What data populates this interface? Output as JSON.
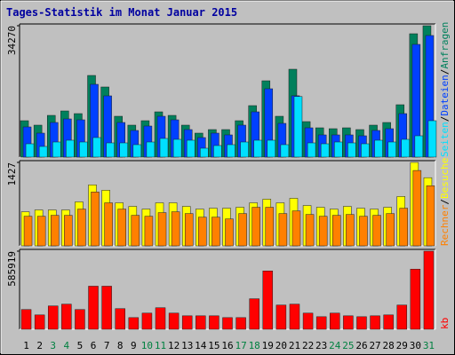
{
  "chart_data": [
    {
      "type": "bar",
      "title": "Tages-Statistik im Monat Januar 2015",
      "ylim": [
        0,
        34270
      ],
      "yticks": [
        34270
      ],
      "legend_separator": "/",
      "series": [
        {
          "name": "Anfragen",
          "color": "#00805c",
          "values": [
            9494,
            8336,
            10883,
            12041,
            11346,
            21303,
            18293,
            10651,
            8336,
            9494,
            11809,
            10883,
            8336,
            6252,
            7178,
            7178,
            9494,
            13430,
            19913,
            10651,
            22923,
            9262,
            7641,
            7410,
            7641,
            7178,
            8336,
            9030,
            13661,
            32185,
            34270
          ]
        },
        {
          "name": "Dateien",
          "color": "#0040ff",
          "values": [
            7873,
            6252,
            9030,
            9957,
            9725,
            18987,
            15977,
            9030,
            6947,
            8104,
            10651,
            9725,
            7178,
            5094,
            6252,
            5789,
            8336,
            11809,
            17829,
            8799,
            16000,
            7641,
            5789,
            5789,
            5789,
            5557,
            6947,
            7410,
            11346,
            29407,
            31722
          ]
        },
        {
          "name": "Seiten",
          "color": "#00e0ff",
          "values": [
            3473,
            2779,
            3936,
            4399,
            3936,
            5094,
            3705,
            3705,
            3242,
            3936,
            4863,
            4631,
            4399,
            2316,
            3010,
            3242,
            3936,
            4399,
            4399,
            3242,
            15800,
            3705,
            3473,
            3936,
            3705,
            3473,
            4399,
            3936,
            4631,
            5557,
            9494
          ]
        }
      ]
    },
    {
      "type": "bar",
      "ylim": [
        0,
        1427
      ],
      "yticks": [
        1427
      ],
      "legend_separator": "/",
      "series": [
        {
          "name": "Besuche",
          "color": "#ffff00",
          "values": [
            583,
            614,
            614,
            614,
            752,
            1043,
            951,
            736,
            675,
            629,
            736,
            736,
            675,
            629,
            644,
            644,
            660,
            736,
            798,
            736,
            813,
            690,
            660,
            629,
            675,
            644,
            629,
            660,
            844,
            1427,
            1166
          ]
        },
        {
          "name": "Rechner",
          "color": "#ff8000",
          "values": [
            506,
            506,
            522,
            522,
            629,
            921,
            736,
            629,
            522,
            506,
            568,
            583,
            552,
            491,
            491,
            460,
            552,
            660,
            660,
            552,
            598,
            537,
            506,
            522,
            537,
            506,
            522,
            552,
            644,
            1289,
            1028
          ]
        }
      ]
    },
    {
      "type": "bar",
      "ylim": [
        0,
        585919
      ],
      "yticks": [
        585919
      ],
      "categories": [
        "1",
        "2",
        "3",
        "4",
        "5",
        "6",
        "7",
        "8",
        "9",
        "10",
        "11",
        "12",
        "13",
        "14",
        "15",
        "16",
        "17",
        "18",
        "19",
        "20",
        "21",
        "22",
        "23",
        "24",
        "25",
        "26",
        "27",
        "28",
        "29",
        "30",
        "31"
      ],
      "category_colors": [
        "#000000",
        "#000000",
        "#008040",
        "#008040",
        "#000000",
        "#000000",
        "#000000",
        "#000000",
        "#000000",
        "#008040",
        "#008040",
        "#000000",
        "#000000",
        "#000000",
        "#000000",
        "#000000",
        "#008040",
        "#008040",
        "#000000",
        "#000000",
        "#000000",
        "#000000",
        "#000000",
        "#008040",
        "#008040",
        "#000000",
        "#000000",
        "#000000",
        "#000000",
        "#000000",
        "#008040"
      ],
      "series": [
        {
          "name": "kb",
          "color": "#ff0000",
          "values": [
            148170,
            107760,
            175110,
            188580,
            148170,
            323280,
            323280,
            154905,
            87555,
            121230,
            161640,
            121230,
            101025,
            101025,
            101025,
            87555,
            87555,
            228990,
            437775,
            181845,
            188580,
            121230,
            94290,
            121230,
            101025,
            94290,
            101025,
            107760,
            181845,
            451245,
            585919
          ]
        }
      ]
    }
  ]
}
